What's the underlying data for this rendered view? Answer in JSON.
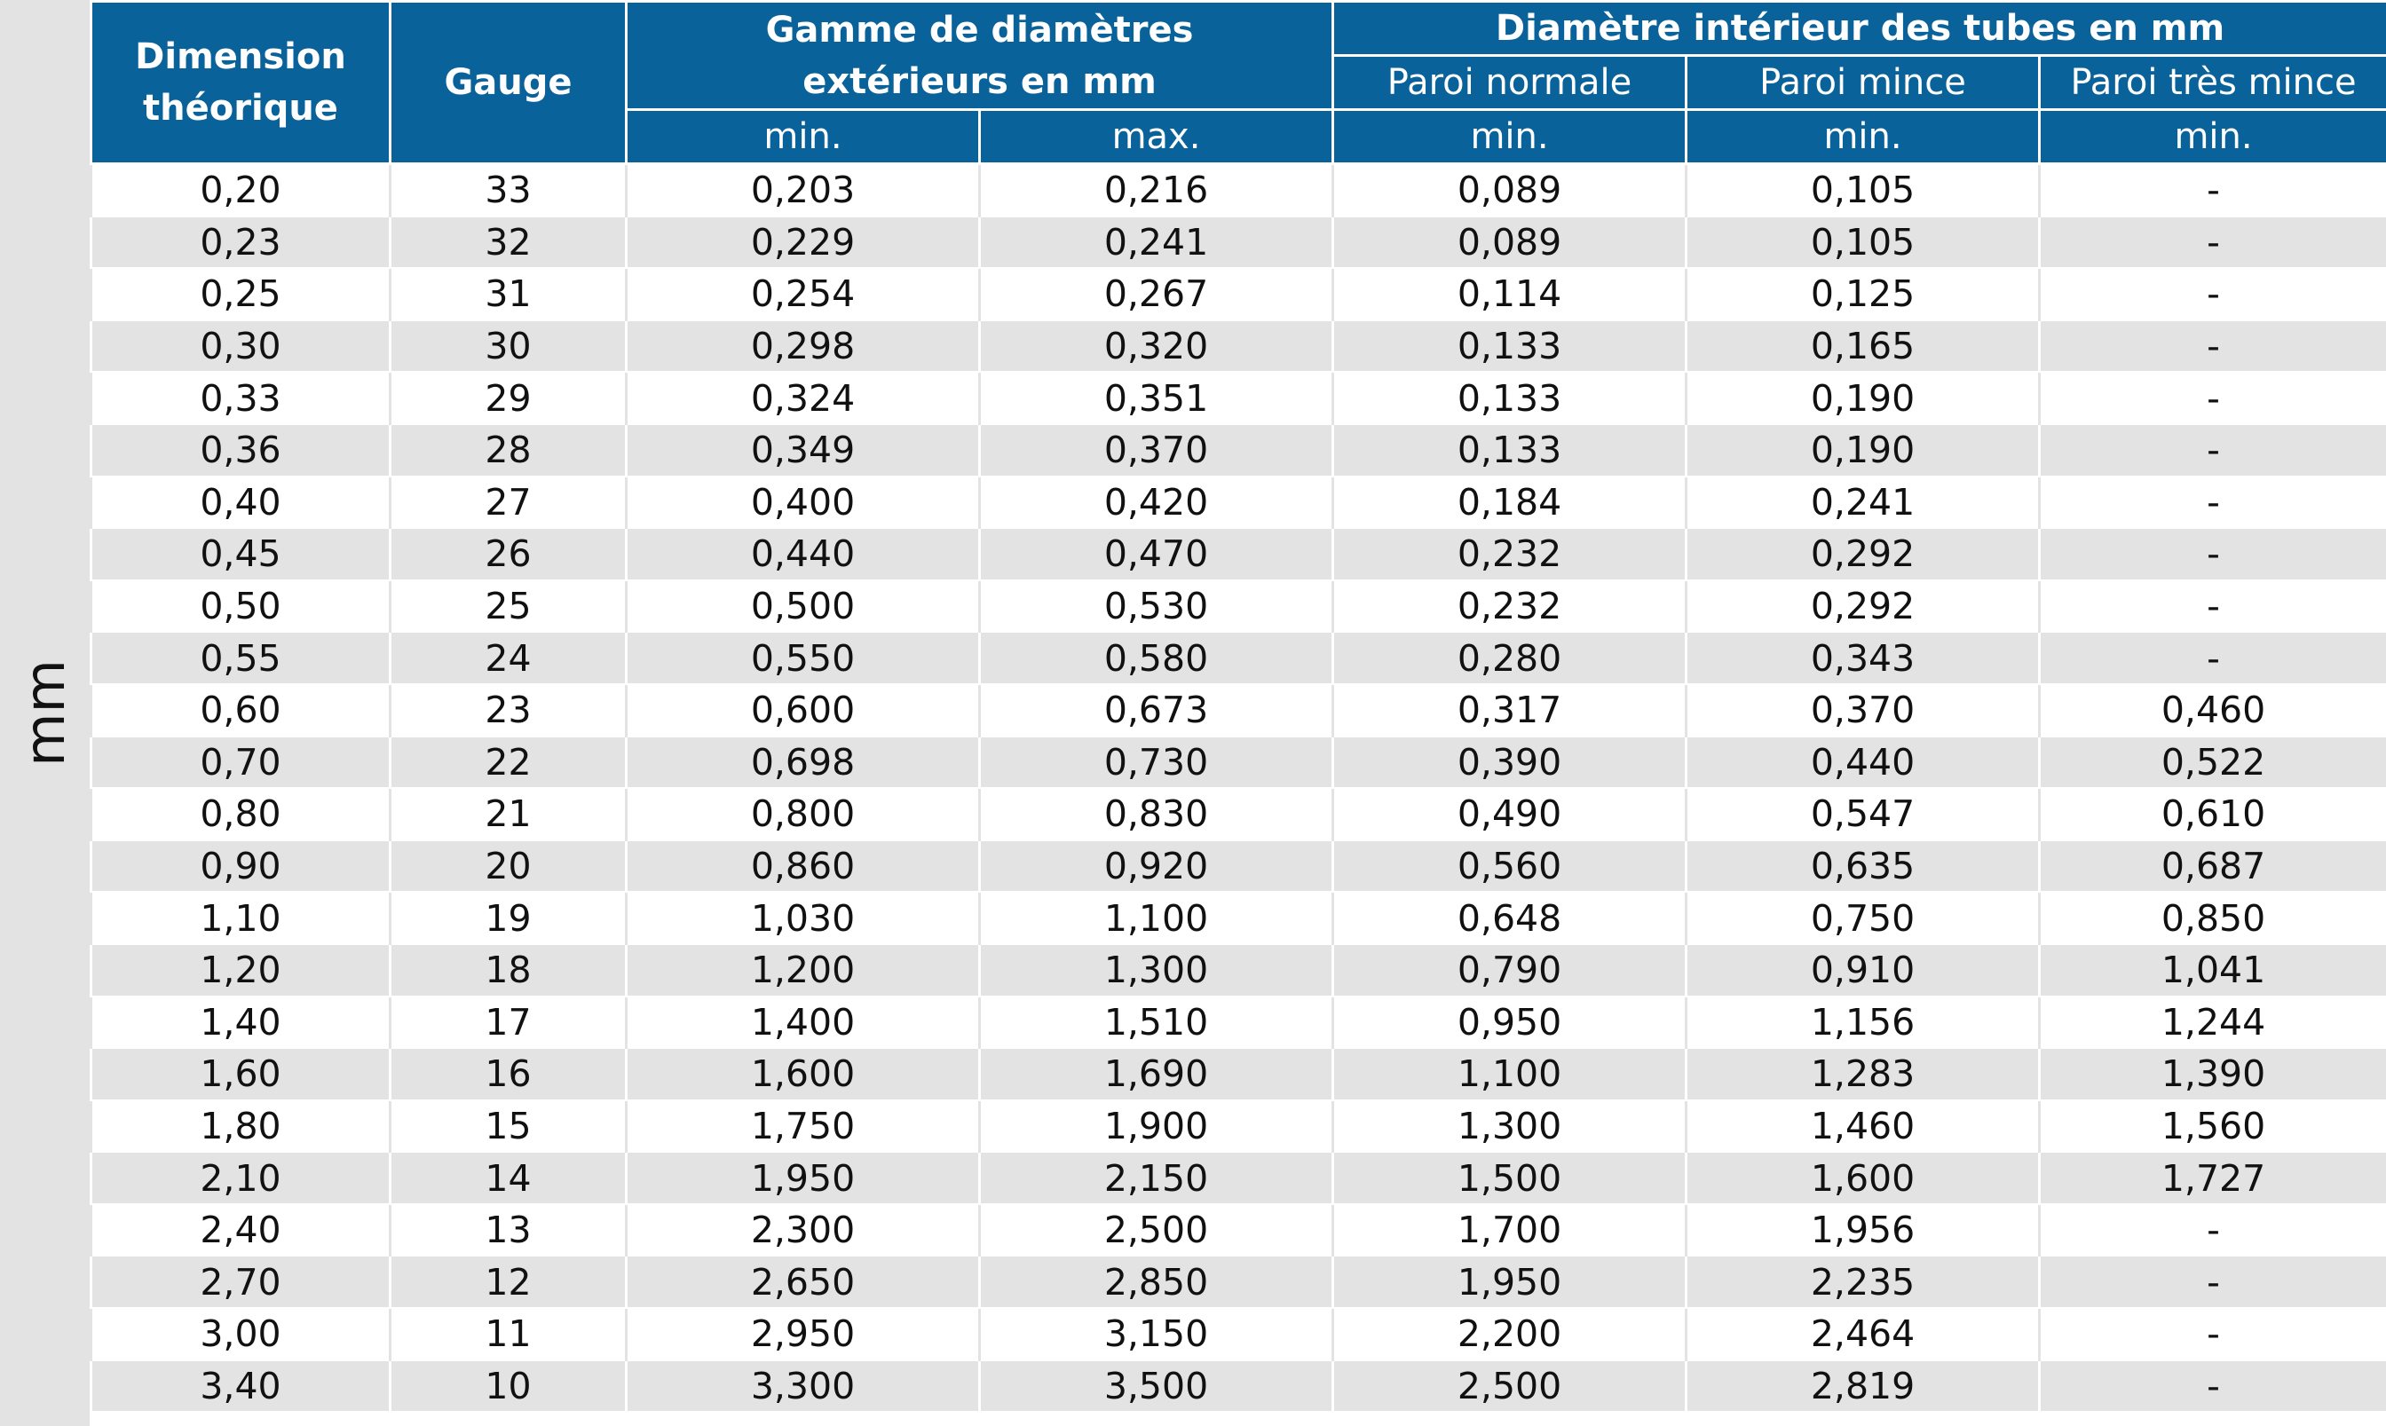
{
  "unit_label": "mm",
  "header": {
    "dimension": "Dimension théorique",
    "gauge": "Gauge",
    "outer_range": "Gamme de diamètres extérieurs en mm",
    "inner_diameter": "Diamètre intérieur des tubes en mm",
    "wall_normal": "Paroi normale",
    "wall_thin": "Paroi mince",
    "wall_very_thin": "Paroi très mince",
    "min": "min.",
    "max": "max."
  },
  "rows": [
    [
      "0,20",
      "33",
      "0,203",
      "0,216",
      "0,089",
      "0,105",
      "-"
    ],
    [
      "0,23",
      "32",
      "0,229",
      "0,241",
      "0,089",
      "0,105",
      "-"
    ],
    [
      "0,25",
      "31",
      "0,254",
      "0,267",
      "0,114",
      "0,125",
      "-"
    ],
    [
      "0,30",
      "30",
      "0,298",
      "0,320",
      "0,133",
      "0,165",
      "-"
    ],
    [
      "0,33",
      "29",
      "0,324",
      "0,351",
      "0,133",
      "0,190",
      "-"
    ],
    [
      "0,36",
      "28",
      "0,349",
      "0,370",
      "0,133",
      "0,190",
      "-"
    ],
    [
      "0,40",
      "27",
      "0,400",
      "0,420",
      "0,184",
      "0,241",
      "-"
    ],
    [
      "0,45",
      "26",
      "0,440",
      "0,470",
      "0,232",
      "0,292",
      "-"
    ],
    [
      "0,50",
      "25",
      "0,500",
      "0,530",
      "0,232",
      "0,292",
      "-"
    ],
    [
      "0,55",
      "24",
      "0,550",
      "0,580",
      "0,280",
      "0,343",
      "-"
    ],
    [
      "0,60",
      "23",
      "0,600",
      "0,673",
      "0,317",
      "0,370",
      "0,460"
    ],
    [
      "0,70",
      "22",
      "0,698",
      "0,730",
      "0,390",
      "0,440",
      "0,522"
    ],
    [
      "0,80",
      "21",
      "0,800",
      "0,830",
      "0,490",
      "0,547",
      "0,610"
    ],
    [
      "0,90",
      "20",
      "0,860",
      "0,920",
      "0,560",
      "0,635",
      "0,687"
    ],
    [
      "1,10",
      "19",
      "1,030",
      "1,100",
      "0,648",
      "0,750",
      "0,850"
    ],
    [
      "1,20",
      "18",
      "1,200",
      "1,300",
      "0,790",
      "0,910",
      "1,041"
    ],
    [
      "1,40",
      "17",
      "1,400",
      "1,510",
      "0,950",
      "1,156",
      "1,244"
    ],
    [
      "1,60",
      "16",
      "1,600",
      "1,690",
      "1,100",
      "1,283",
      "1,390"
    ],
    [
      "1,80",
      "15",
      "1,750",
      "1,900",
      "1,300",
      "1,460",
      "1,560"
    ],
    [
      "2,10",
      "14",
      "1,950",
      "2,150",
      "1,500",
      "1,600",
      "1,727"
    ],
    [
      "2,40",
      "13",
      "2,300",
      "2,500",
      "1,700",
      "1,956",
      "-"
    ],
    [
      "2,70",
      "12",
      "2,650",
      "2,850",
      "1,950",
      "2,235",
      "-"
    ],
    [
      "3,00",
      "11",
      "2,950",
      "3,150",
      "2,200",
      "2,464",
      "-"
    ],
    [
      "3,40",
      "10",
      "3,300",
      "3,500",
      "2,500",
      "2,819",
      "-"
    ]
  ],
  "colors": {
    "header_blue": "#0a629b",
    "stripe_gray": "#e3e3e3"
  }
}
